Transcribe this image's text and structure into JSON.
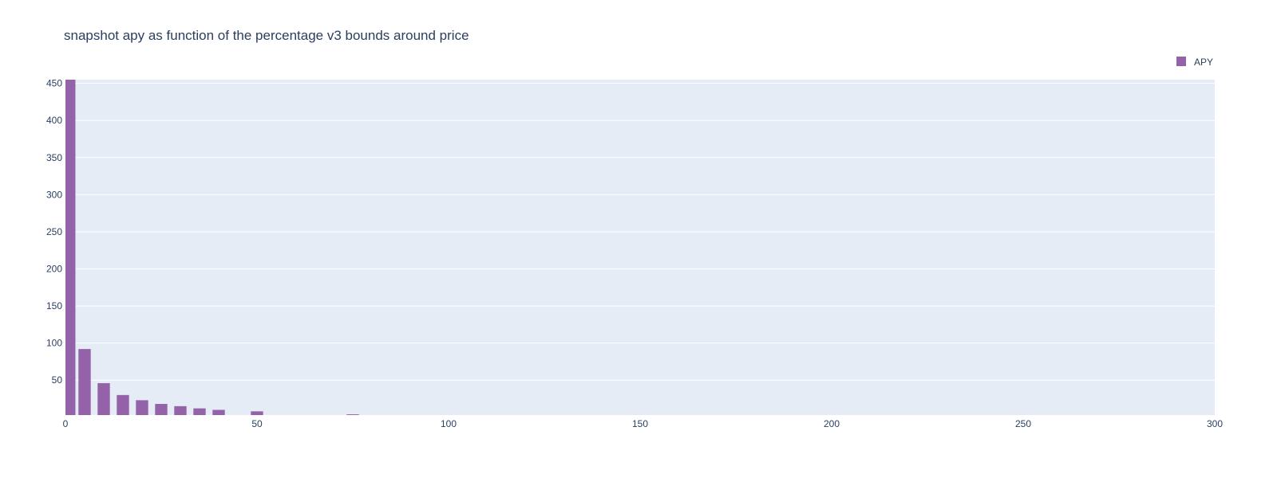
{
  "chart_data": {
    "type": "bar",
    "title": "snapshot apy as function of the percentage v3 bounds around price",
    "xlabel": "",
    "ylabel": "",
    "x": [
      1,
      5,
      10,
      15,
      20,
      25,
      30,
      35,
      40,
      50,
      75
    ],
    "values": [
      455,
      92,
      46,
      30,
      23,
      18,
      15,
      12,
      10,
      8,
      4
    ],
    "series": [
      {
        "name": "APY",
        "values": [
          455,
          92,
          46,
          30,
          23,
          18,
          15,
          12,
          10,
          8,
          4
        ]
      }
    ],
    "xlim": [
      0,
      300
    ],
    "ylim": [
      3,
      455
    ],
    "x_ticks": [
      "0",
      "50",
      "100",
      "150",
      "200",
      "250",
      "300"
    ],
    "y_ticks": [
      "50",
      "100",
      "150",
      "200",
      "250",
      "300",
      "350",
      "400",
      "450"
    ],
    "grid": true,
    "legend_position": "top-right",
    "colors": {
      "bar": "#9362a8",
      "plot_background": "#e5ecf6",
      "grid": "#ffffff",
      "text": "#2a3f5f"
    }
  }
}
